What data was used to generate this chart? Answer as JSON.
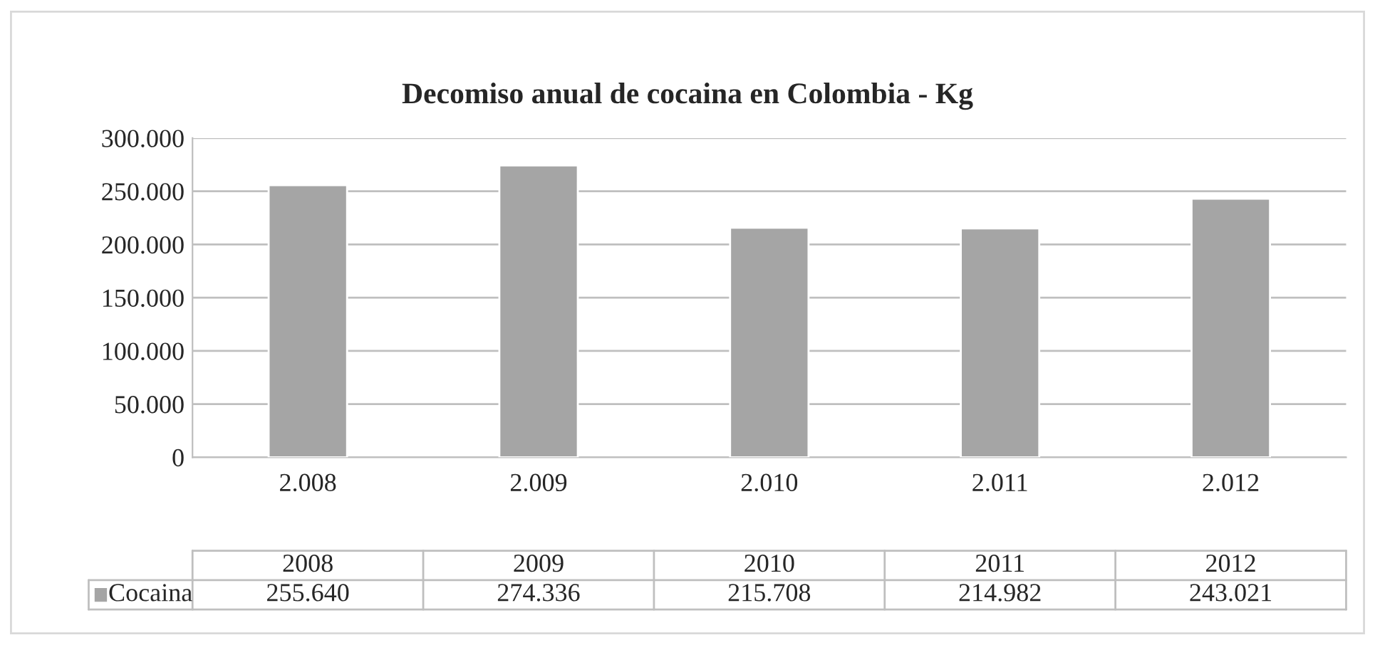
{
  "chart_data": {
    "type": "bar",
    "title": "Decomiso anual de cocaina en Colombia - Kg",
    "categories": [
      "2.008",
      "2.009",
      "2.010",
      "2.011",
      "2.012"
    ],
    "series": [
      {
        "name": "Cocaina",
        "color": "#a5a5a5",
        "values": [
          255640,
          274336,
          215708,
          214982,
          243021
        ],
        "value_labels": [
          "255.640",
          "274.336",
          "215.708",
          "214.982",
          "243.021"
        ]
      }
    ],
    "annotations": [
      "2008",
      "2009",
      "2010",
      "2011",
      "2012"
    ],
    "ylim": [
      0,
      300000
    ],
    "yticks": [
      {
        "value": 0,
        "label": "0"
      },
      {
        "value": 50000,
        "label": "50.000"
      },
      {
        "value": 100000,
        "label": "100.000"
      },
      {
        "value": 150000,
        "label": "150.000"
      },
      {
        "value": 200000,
        "label": "200.000"
      },
      {
        "value": 250000,
        "label": "250.000"
      },
      {
        "value": 300000,
        "label": "300.000"
      }
    ],
    "grid": "y",
    "legend": "bottom"
  }
}
